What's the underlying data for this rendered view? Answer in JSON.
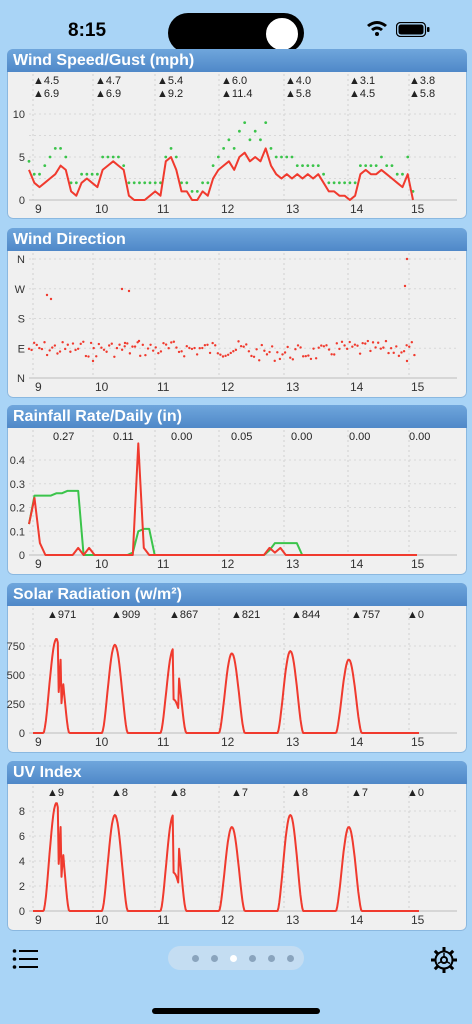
{
  "status_bar": {
    "time": "8:15"
  },
  "colors": {
    "gust": "#3bc44b",
    "speed": "#f03a2e",
    "panel_header": "#5a93cf",
    "background": "#a9d4f6"
  },
  "panels": [
    {
      "id": "wind",
      "title": "Wind Speed/Gust (mph)",
      "annotations_top": [
        "▲4.5",
        "▲4.7",
        "▲5.4",
        "▲6.0",
        "▲4.0",
        "▲3.1",
        "▲3.8"
      ],
      "annotations_bottom": [
        "▲6.9",
        "▲6.9",
        "▲9.2",
        "▲11.4",
        "▲5.8",
        "▲4.5",
        "▲5.8"
      ],
      "y_ticks": [
        "10",
        "5",
        "0"
      ],
      "x_ticks": [
        "9",
        "10",
        "11",
        "12",
        "13",
        "14",
        "15"
      ]
    },
    {
      "id": "direction",
      "title": "Wind Direction",
      "y_ticks": [
        "N",
        "W",
        "S",
        "E",
        "N"
      ],
      "x_ticks": [
        "9",
        "10",
        "11",
        "12",
        "13",
        "14",
        "15"
      ]
    },
    {
      "id": "rain",
      "title": "Rainfall Rate/Daily (in)",
      "annotations_top": [
        "0.27",
        "0.11",
        "0.00",
        "0.05",
        "0.00",
        "0.00",
        "0.00"
      ],
      "y_ticks": [
        "0.4",
        "0.3",
        "0.2",
        "0.1",
        "0"
      ],
      "x_ticks": [
        "9",
        "10",
        "11",
        "12",
        "13",
        "14",
        "15"
      ]
    },
    {
      "id": "solar",
      "title": "Solar Radiation (w/m²)",
      "annotations_top": [
        "▲971",
        "▲909",
        "▲867",
        "▲821",
        "▲844",
        "▲757",
        "▲0"
      ],
      "y_ticks": [
        "750",
        "500",
        "250",
        "0"
      ],
      "x_ticks": [
        "9",
        "10",
        "11",
        "12",
        "13",
        "14",
        "15"
      ]
    },
    {
      "id": "uv",
      "title": "UV Index",
      "annotations_top": [
        "▲9",
        "▲8",
        "▲8",
        "▲7",
        "▲8",
        "▲7",
        "▲0"
      ],
      "y_ticks": [
        "8",
        "6",
        "4",
        "2",
        "0"
      ],
      "x_ticks": [
        "9",
        "10",
        "11",
        "12",
        "13",
        "14",
        "15"
      ]
    }
  ],
  "chart_data": [
    {
      "type": "line",
      "title": "Wind Speed/Gust (mph)",
      "x_ticks": [
        "9",
        "10",
        "11",
        "12",
        "13",
        "14",
        "15"
      ],
      "ylim": [
        0,
        12
      ],
      "series": [
        {
          "name": "",
          "values": [
            3.5,
            2,
            1.5,
            2,
            2.5,
            3,
            4,
            3.5,
            1,
            0.5,
            2,
            2.5,
            2,
            1.5,
            3.5,
            4,
            4.5,
            4,
            3.5,
            0.5,
            0,
            0,
            0,
            0.5,
            1,
            0.5,
            4.5,
            5,
            3.5,
            1,
            1,
            0,
            0,
            1,
            0.5,
            2.5,
            3.5,
            4,
            4.5,
            3.5,
            5,
            5.5,
            4.5,
            5,
            4.5,
            6,
            4,
            3,
            2.5,
            3,
            2.5,
            3,
            2.5,
            3,
            2.5,
            3,
            2,
            1,
            1,
            0.5,
            0.5,
            0,
            0.5,
            3,
            3.5,
            3,
            3,
            3.5,
            3,
            2.5,
            2,
            1.5,
            3,
            0
          ]
        },
        {
          "name": "",
          "values": [
            4.5,
            3,
            3,
            4,
            5,
            6,
            6,
            5,
            2,
            2,
            3,
            3,
            3,
            3,
            5,
            5,
            5,
            5,
            4,
            2,
            2,
            2,
            2,
            2,
            2,
            2,
            5,
            6,
            5,
            2,
            2,
            1,
            1,
            2,
            2,
            4,
            5,
            6,
            7,
            6,
            8,
            9,
            7,
            8,
            7,
            9,
            6,
            5,
            5,
            5,
            5,
            4,
            4,
            4,
            4,
            4,
            3,
            2,
            2,
            2,
            2,
            2,
            2,
            4,
            4,
            4,
            4,
            5,
            4,
            4,
            3,
            3,
            5,
            1
          ]
        }
      ]
    },
    {
      "type": "scatter",
      "title": "Wind Direction",
      "y_ticks": [
        "N",
        "W",
        "S",
        "E",
        "N"
      ],
      "x_ticks": [
        "9",
        "10",
        "11",
        "12",
        "13",
        "14",
        "15"
      ]
    },
    {
      "type": "line",
      "title": "Rainfall Rate/Daily (in)",
      "x_ticks": [
        "9",
        "10",
        "11",
        "12",
        "13",
        "14",
        "15"
      ],
      "ylim": [
        0,
        0.5
      ],
      "series": [
        {
          "name": "",
          "values": [
            0.13,
            0.24,
            0.05,
            0,
            0,
            0,
            0,
            0,
            0,
            0.03,
            0,
            0.03,
            0,
            0,
            0,
            0,
            0,
            0,
            0,
            0,
            0.47,
            0.03,
            0,
            0,
            0,
            0,
            0,
            0,
            0,
            0,
            0,
            0,
            0,
            0,
            0,
            0,
            0,
            0,
            0,
            0,
            0,
            0,
            0,
            0,
            0.03,
            0.01,
            0.03,
            0,
            0,
            0,
            0,
            0,
            0,
            0,
            0,
            0,
            0,
            0,
            0,
            0,
            0,
            0,
            0,
            0,
            0,
            0,
            0,
            0,
            0,
            0,
            0,
            0
          ]
        },
        {
          "name": "",
          "values": [
            0.13,
            0.25,
            0.25,
            0.25,
            0.25,
            0.26,
            0.26,
            0.27,
            0.27,
            0.27,
            0,
            0,
            0,
            0,
            0,
            0,
            0,
            0,
            0,
            0.01,
            0.1,
            0.11,
            0.11,
            0,
            0,
            0,
            0,
            0,
            0,
            0,
            0,
            0,
            0,
            0,
            0,
            0,
            0,
            0,
            0,
            0,
            0,
            0,
            0,
            0,
            0.02,
            0.05,
            0.05,
            0.05,
            0.05,
            0.05,
            0,
            0,
            0,
            0,
            0,
            0,
            0,
            0,
            0,
            0,
            0,
            0,
            0,
            0,
            0,
            0,
            0,
            0,
            0,
            0,
            0,
            0
          ]
        }
      ]
    },
    {
      "type": "line",
      "title": "Solar Radiation (w/m²)",
      "x_ticks": [
        "9",
        "10",
        "11",
        "12",
        "13",
        "14",
        "15"
      ],
      "annotations": [
        "▲971",
        "▲909",
        "▲867",
        "▲821",
        "▲844",
        "▲757",
        "▲0"
      ],
      "ylim": [
        0,
        1000
      ],
      "peaks": [
        971,
        909,
        867,
        821,
        844,
        757,
        0
      ]
    },
    {
      "type": "line",
      "title": "UV Index",
      "x_ticks": [
        "9",
        "10",
        "11",
        "12",
        "13",
        "14",
        "15"
      ],
      "annotations": [
        "▲9",
        "▲8",
        "▲8",
        "▲7",
        "▲8",
        "▲7",
        "▲0"
      ],
      "ylim": [
        0,
        9
      ],
      "peaks": [
        9,
        8,
        8,
        7,
        8,
        7,
        0
      ]
    }
  ],
  "nav": {
    "menu_icon": "list-icon",
    "settings_icon": "gear-icon",
    "pages": 6,
    "active_page": 2
  }
}
